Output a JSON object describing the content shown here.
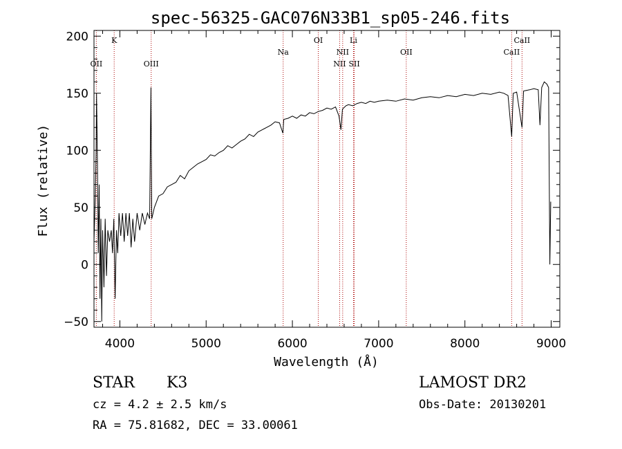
{
  "chart_data": {
    "type": "line",
    "title": "spec-56325-GAC076N33B1_sp05-246.fits",
    "xlabel": "Wavelength (Å)",
    "ylabel": "Flux (relative)",
    "xlim": [
      3700,
      9100
    ],
    "ylim": [
      -55,
      205
    ],
    "x_ticks": [
      "4000",
      "5000",
      "6000",
      "7000",
      "8000",
      "9000"
    ],
    "y_ticks": [
      "−50",
      "0",
      "50",
      "100",
      "150",
      "200"
    ],
    "grid": false,
    "legend": "none",
    "line_color": "#000000",
    "marker_color": "#aa0000",
    "spectral_lines": [
      {
        "label": "OII",
        "wavelength": 3727,
        "row": "lower"
      },
      {
        "label": "K",
        "wavelength": 3934,
        "row": "upper"
      },
      {
        "label": "OIII",
        "wavelength": 4363,
        "row": "lower"
      },
      {
        "label": "Na",
        "wavelength": 5893,
        "row": "middle"
      },
      {
        "label": "OI",
        "wavelength": 6300,
        "row": "upper"
      },
      {
        "label": "NII",
        "wavelength": 6548,
        "row": "lower"
      },
      {
        "label": "NII",
        "wavelength": 6583,
        "row": "middle"
      },
      {
        "label": "Li",
        "wavelength": 6708,
        "row": "upper"
      },
      {
        "label": "SII",
        "wavelength": 6717,
        "row": "lower"
      },
      {
        "label": "OII",
        "wavelength": 7320,
        "row": "middle"
      },
      {
        "label": "CaII",
        "wavelength": 8542,
        "row": "middle"
      },
      {
        "label": "CaII",
        "wavelength": 8662,
        "row": "upper"
      }
    ],
    "series": [
      {
        "points": [
          [
            3700,
            20
          ],
          [
            3715,
            60
          ],
          [
            3725,
            100
          ],
          [
            3730,
            150
          ],
          [
            3740,
            90
          ],
          [
            3750,
            10
          ],
          [
            3760,
            70
          ],
          [
            3770,
            -30
          ],
          [
            3780,
            40
          ],
          [
            3790,
            -50
          ],
          [
            3800,
            30
          ],
          [
            3815,
            -20
          ],
          [
            3830,
            40
          ],
          [
            3845,
            -10
          ],
          [
            3860,
            30
          ],
          [
            3880,
            20
          ],
          [
            3900,
            30
          ],
          [
            3915,
            10
          ],
          [
            3930,
            40
          ],
          [
            3945,
            -30
          ],
          [
            3960,
            30
          ],
          [
            3975,
            10
          ],
          [
            3990,
            45
          ],
          [
            4010,
            25
          ],
          [
            4030,
            45
          ],
          [
            4050,
            20
          ],
          [
            4070,
            45
          ],
          [
            4090,
            25
          ],
          [
            4110,
            45
          ],
          [
            4130,
            15
          ],
          [
            4150,
            40
          ],
          [
            4170,
            20
          ],
          [
            4200,
            45
          ],
          [
            4230,
            30
          ],
          [
            4260,
            45
          ],
          [
            4290,
            35
          ],
          [
            4320,
            45
          ],
          [
            4345,
            40
          ],
          [
            4360,
            155
          ],
          [
            4370,
            40
          ],
          [
            4400,
            50
          ],
          [
            4450,
            60
          ],
          [
            4500,
            62
          ],
          [
            4550,
            68
          ],
          [
            4600,
            70
          ],
          [
            4650,
            72
          ],
          [
            4700,
            78
          ],
          [
            4750,
            75
          ],
          [
            4800,
            82
          ],
          [
            4850,
            85
          ],
          [
            4900,
            88
          ],
          [
            4950,
            90
          ],
          [
            5000,
            92
          ],
          [
            5050,
            96
          ],
          [
            5100,
            95
          ],
          [
            5150,
            98
          ],
          [
            5200,
            100
          ],
          [
            5250,
            104
          ],
          [
            5300,
            102
          ],
          [
            5350,
            105
          ],
          [
            5400,
            108
          ],
          [
            5450,
            110
          ],
          [
            5500,
            114
          ],
          [
            5550,
            112
          ],
          [
            5600,
            116
          ],
          [
            5650,
            118
          ],
          [
            5700,
            120
          ],
          [
            5750,
            122
          ],
          [
            5800,
            125
          ],
          [
            5850,
            124
          ],
          [
            5890,
            115
          ],
          [
            5900,
            127
          ],
          [
            5950,
            128
          ],
          [
            6000,
            130
          ],
          [
            6050,
            128
          ],
          [
            6100,
            131
          ],
          [
            6150,
            130
          ],
          [
            6200,
            133
          ],
          [
            6250,
            132
          ],
          [
            6300,
            134
          ],
          [
            6350,
            135
          ],
          [
            6400,
            137
          ],
          [
            6450,
            136
          ],
          [
            6500,
            138
          ],
          [
            6540,
            130
          ],
          [
            6563,
            118
          ],
          [
            6580,
            136
          ],
          [
            6620,
            139
          ],
          [
            6650,
            140
          ],
          [
            6700,
            139
          ],
          [
            6750,
            141
          ],
          [
            6800,
            142
          ],
          [
            6850,
            141
          ],
          [
            6900,
            143
          ],
          [
            6950,
            142
          ],
          [
            7000,
            143
          ],
          [
            7100,
            144
          ],
          [
            7200,
            143
          ],
          [
            7300,
            145
          ],
          [
            7400,
            144
          ],
          [
            7500,
            146
          ],
          [
            7600,
            147
          ],
          [
            7700,
            146
          ],
          [
            7800,
            148
          ],
          [
            7900,
            147
          ],
          [
            8000,
            149
          ],
          [
            8100,
            148
          ],
          [
            8200,
            150
          ],
          [
            8300,
            149
          ],
          [
            8400,
            151
          ],
          [
            8450,
            150
          ],
          [
            8500,
            148
          ],
          [
            8542,
            112
          ],
          [
            8560,
            150
          ],
          [
            8600,
            151
          ],
          [
            8662,
            120
          ],
          [
            8680,
            152
          ],
          [
            8750,
            153
          ],
          [
            8800,
            154
          ],
          [
            8850,
            153
          ],
          [
            8870,
            122
          ],
          [
            8890,
            155
          ],
          [
            8920,
            160
          ],
          [
            8950,
            158
          ],
          [
            8970,
            155
          ],
          [
            8985,
            0
          ],
          [
            8995,
            55
          ]
        ]
      }
    ]
  },
  "footer": {
    "object_class": "STAR",
    "subclass": "K3",
    "redshift": "cz = 4.2 ± 2.5 km/s",
    "coordinates": "RA =  75.81682, DEC =  33.00061",
    "survey": "LAMOST DR2",
    "obs_date": "Obs-Date: 20130201"
  }
}
